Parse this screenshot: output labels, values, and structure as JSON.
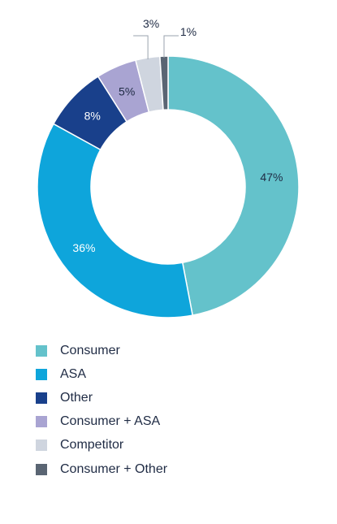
{
  "chart_data": {
    "type": "pie",
    "donut": true,
    "legend_position": "bottom-left",
    "series": [
      {
        "name": "Consumer",
        "value": 47,
        "label": "47%",
        "color": "#64c2cb",
        "label_color": "#1f2b44"
      },
      {
        "name": "ASA",
        "value": 36,
        "label": "36%",
        "color": "#0ea5db",
        "label_color": "#ffffff"
      },
      {
        "name": "Other",
        "value": 8,
        "label": "8%",
        "color": "#19408b",
        "label_color": "#ffffff"
      },
      {
        "name": "Consumer + ASA",
        "value": 5,
        "label": "5%",
        "color": "#a9a4d2",
        "label_color": "#1f2b44"
      },
      {
        "name": "Competitor",
        "value": 3,
        "label": "3%",
        "color": "#cfd5df",
        "label_color": "#1f2b44"
      },
      {
        "name": "Consumer + Other",
        "value": 1,
        "label": "1%",
        "color": "#5a6573",
        "label_color": "#1f2b44"
      }
    ]
  }
}
